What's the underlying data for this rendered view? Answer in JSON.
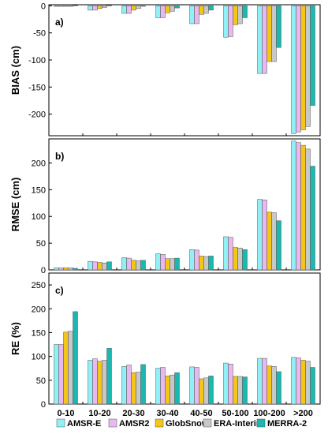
{
  "chart_data": {
    "type": "bar",
    "categories": [
      "0-10",
      "10-20",
      "20-30",
      "30-40",
      "40-50",
      "50-100",
      "100-200",
      ">200"
    ],
    "series_names": [
      "AMSR-E",
      "AMSR2",
      "GlobSnow",
      "ERA-Interim",
      "MERRA-2"
    ],
    "series_colors": [
      "#8ff0f5",
      "#e8b8f0",
      "#f5c518",
      "#c8c8c8",
      "#1ab8b0"
    ],
    "legend_position": "bottom",
    "panels": [
      {
        "label": "a)",
        "ylabel": "BIAS (cm)",
        "ylim": [
          -240,
          2
        ],
        "yticks": [
          0,
          -50,
          -100,
          -150,
          -200
        ],
        "series": [
          {
            "name": "AMSR-E",
            "values": [
              -1,
              -8,
              -14,
              -22,
              -33,
              -58,
              -125,
              -236
            ]
          },
          {
            "name": "AMSR2",
            "values": [
              -1,
              -8,
              -14,
              -22,
              -33,
              -57,
              -125,
              -233
            ]
          },
          {
            "name": "GlobSnow",
            "values": [
              -1,
              -5,
              -8,
              -13,
              -16,
              -35,
              -103,
              -229
            ]
          },
          {
            "name": "ERA-Interim",
            "values": [
              -1,
              -3,
              -5,
              -10,
              -14,
              -33,
              -103,
              -223
            ]
          },
          {
            "name": "MERRA-2",
            "values": [
              1,
              1,
              -1,
              -4,
              -8,
              -22,
              -77,
              -184
            ]
          }
        ]
      },
      {
        "label": "b)",
        "ylabel": "RMSE (cm)",
        "ylim": [
          0,
          245
        ],
        "yticks": [
          0,
          50,
          100,
          150,
          200
        ],
        "series": [
          {
            "name": "AMSR-E",
            "values": [
              4,
              16,
              23,
              30,
              38,
              62,
              132,
              241
            ]
          },
          {
            "name": "AMSR2",
            "values": [
              4,
              15,
              22,
              29,
              37,
              61,
              131,
              238
            ]
          },
          {
            "name": "GlobSnow",
            "values": [
              4,
              14,
              18,
              21,
              26,
              42,
              108,
              233
            ]
          },
          {
            "name": "ERA-Interim",
            "values": [
              4,
              13,
              17,
              21,
              25,
              41,
              107,
              226
            ]
          },
          {
            "name": "MERRA-2",
            "values": [
              3,
              15,
              18,
              22,
              26,
              38,
              92,
              194
            ]
          }
        ]
      },
      {
        "label": "c)",
        "ylabel": "RE (%)",
        "ylim": [
          0,
          275
        ],
        "yticks": [
          0,
          50,
          100,
          150,
          200,
          250
        ],
        "series": [
          {
            "name": "AMSR-E",
            "values": [
              125,
              92,
              79,
              75,
              78,
              86,
              96,
              98
            ]
          },
          {
            "name": "AMSR2",
            "values": [
              125,
              95,
              82,
              77,
              77,
              84,
              96,
              97
            ]
          },
          {
            "name": "GlobSnow",
            "values": [
              151,
              90,
              66,
              59,
              53,
              58,
              80,
              92
            ]
          },
          {
            "name": "ERA-Interim",
            "values": [
              153,
              92,
              67,
              61,
              55,
              58,
              79,
              90
            ]
          },
          {
            "name": "MERRA-2",
            "values": [
              194,
              117,
              83,
              66,
              59,
              57,
              68,
              77
            ]
          }
        ]
      }
    ]
  }
}
